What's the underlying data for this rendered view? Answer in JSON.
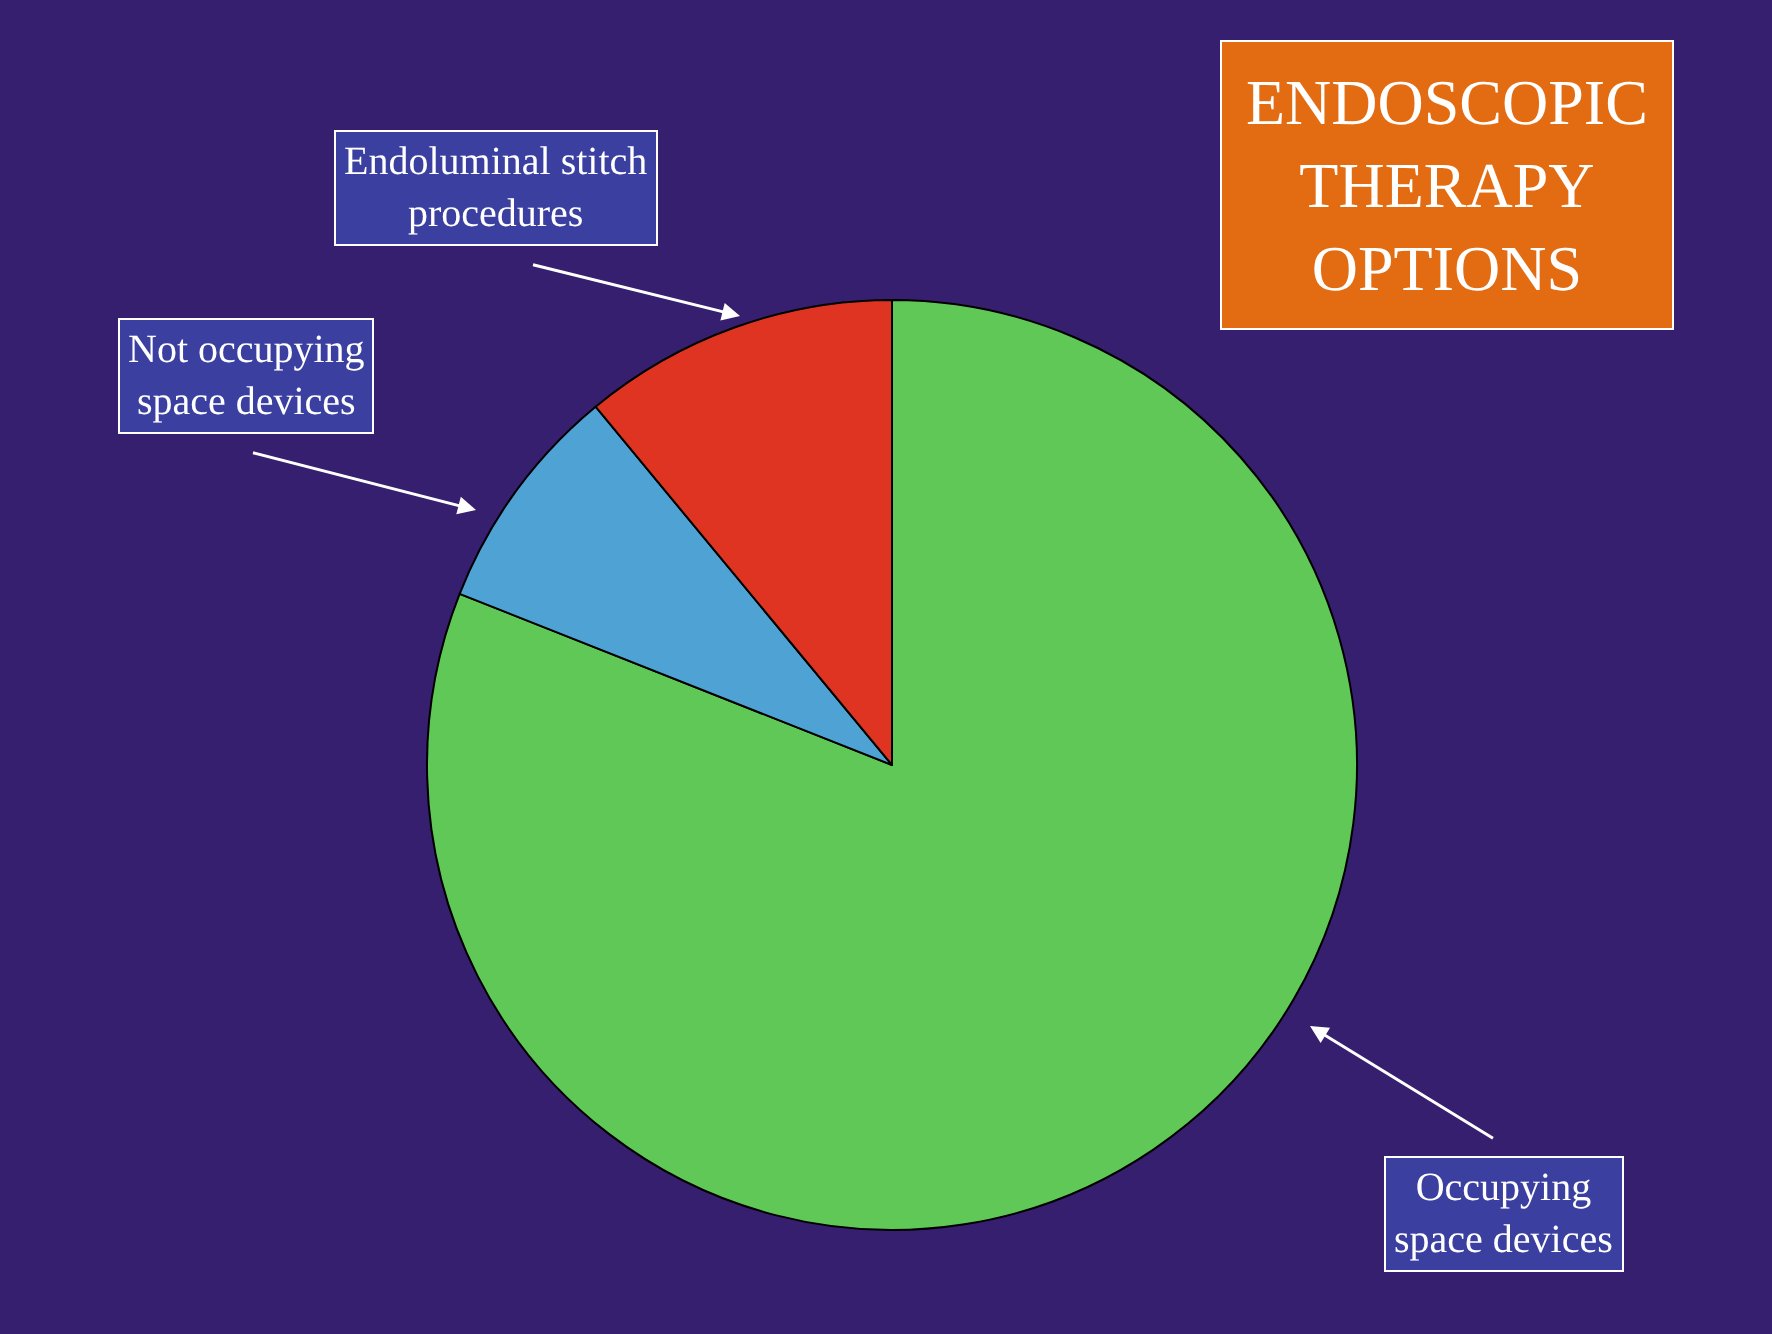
{
  "chart_data": {
    "type": "pie",
    "title": "ENDOSCOPIC\nTHERAPY\nOPTIONS",
    "categories": [
      "Occupying\nspace devices",
      "Not occupying\nspace devices",
      "Endoluminal stitch\nprocedures"
    ],
    "values": [
      81,
      8,
      11
    ],
    "colors": [
      "#5fc857",
      "#4fa3d4",
      "#e03423"
    ],
    "legend": false
  }
}
